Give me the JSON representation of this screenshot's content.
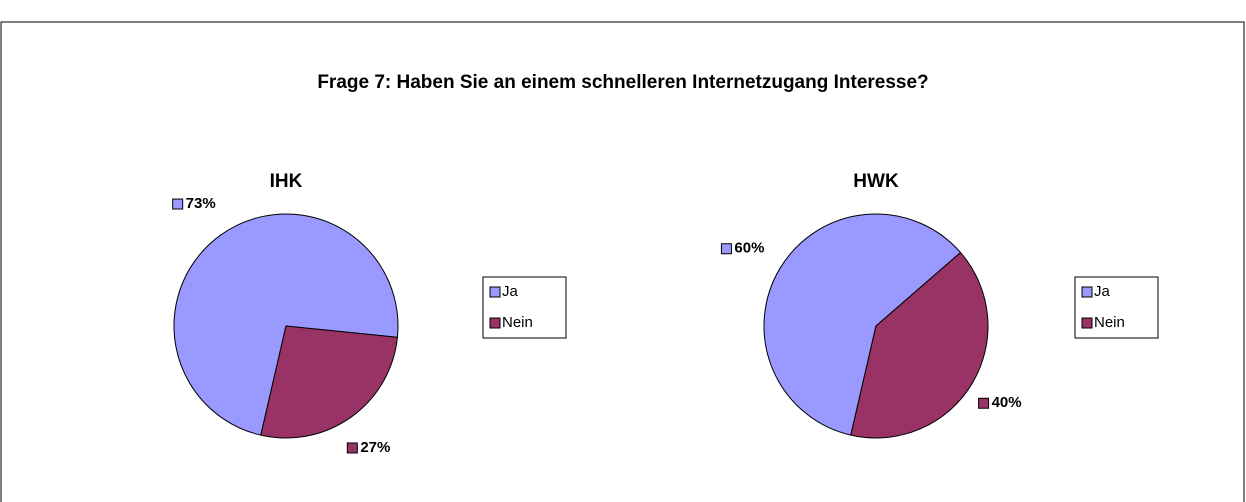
{
  "title": "Frage 7: Haben Sie an einem schnelleren Internetzugang Interesse?",
  "chart_data": [
    {
      "type": "pie",
      "title": "IHK",
      "categories": [
        "Ja",
        "Nein"
      ],
      "values": [
        73,
        27
      ],
      "value_labels": [
        "73%",
        "27%"
      ],
      "colors": [
        "#9999ff",
        "#993366"
      ],
      "legend": "right"
    },
    {
      "type": "pie",
      "title": "HWK",
      "categories": [
        "Ja",
        "Nein"
      ],
      "values": [
        60,
        40
      ],
      "value_labels": [
        "60%",
        "40%"
      ],
      "colors": [
        "#9999ff",
        "#993366"
      ],
      "legend": "right"
    }
  ]
}
